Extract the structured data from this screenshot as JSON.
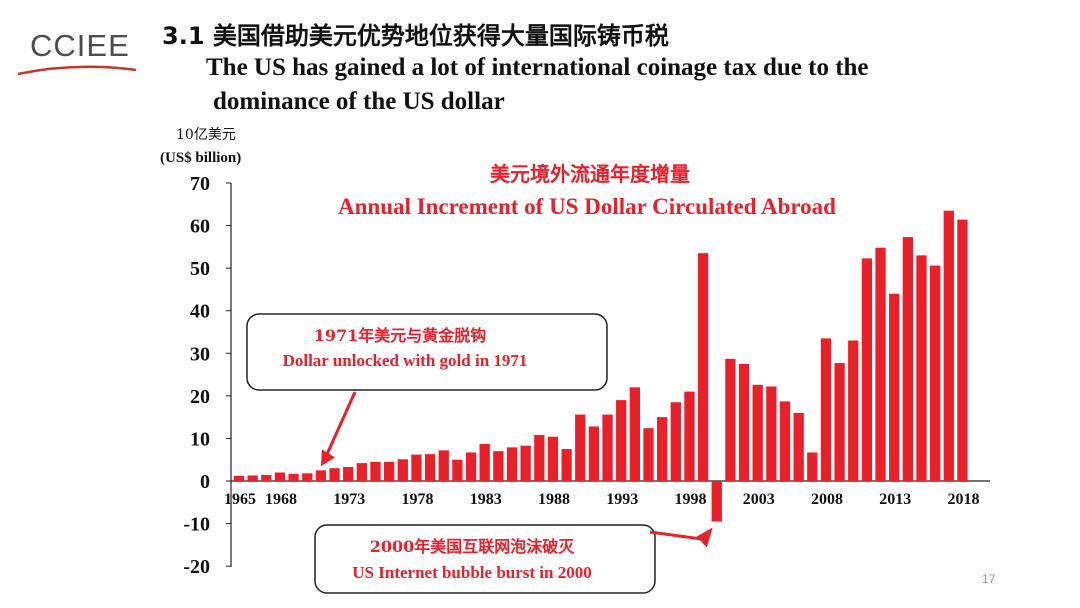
{
  "logo": {
    "text": "CCIEE",
    "accent_color": "#c0392b"
  },
  "header": {
    "title_cn": "3.1 美国借助美元优势地位获得大量国际铸币税",
    "title_en_line1": "The US has gained a lot of international coinage tax due to the",
    "title_en_line2": "dominance of the US dollar"
  },
  "page_number": "17",
  "chart_data": {
    "type": "bar",
    "title_cn": "美元境外流通年度增量",
    "title": "Annual Increment of US Dollar Circulated Abroad",
    "ylabel_cn": "10亿美元",
    "ylabel": "(US$ billion)",
    "xlabel": "",
    "ylim": [
      -20,
      70
    ],
    "yticks": [
      70,
      60,
      50,
      40,
      30,
      20,
      10,
      0,
      -10,
      -20
    ],
    "xtick_labels": [
      "1965",
      "1968",
      "1973",
      "1978",
      "1983",
      "1988",
      "1993",
      "1998",
      "2003",
      "2008",
      "2013",
      "2018"
    ],
    "bar_color": "#e8202a",
    "categories": [
      1965,
      1966,
      1967,
      1968,
      1969,
      1970,
      1971,
      1972,
      1973,
      1974,
      1975,
      1976,
      1977,
      1978,
      1979,
      1980,
      1981,
      1982,
      1983,
      1984,
      1985,
      1986,
      1987,
      1988,
      1989,
      1990,
      1991,
      1992,
      1993,
      1994,
      1995,
      1996,
      1997,
      1998,
      1999,
      2000,
      2001,
      2002,
      2003,
      2004,
      2005,
      2006,
      2007,
      2008,
      2009,
      2010,
      2011,
      2012,
      2013,
      2014,
      2015,
      2016,
      2017,
      2018
    ],
    "values": [
      1.2,
      1.3,
      1.4,
      2.0,
      1.7,
      1.8,
      2.5,
      3.0,
      3.3,
      4.2,
      4.5,
      4.5,
      5.1,
      6.2,
      6.3,
      7.2,
      5.0,
      6.7,
      8.7,
      7.0,
      7.9,
      8.3,
      10.8,
      10.4,
      7.5,
      15.6,
      12.8,
      15.6,
      19.0,
      22.0,
      12.4,
      15.0,
      18.5,
      21.0,
      53.5,
      -9.5,
      28.7,
      27.5,
      22.6,
      22.2,
      18.7,
      16.0,
      6.7,
      33.5,
      27.7,
      33.0,
      52.3,
      54.8,
      44.0,
      57.3,
      53.0,
      50.6,
      63.5,
      61.4
    ],
    "annotations": [
      {
        "text_cn": "1971年美元与黄金脱钩",
        "text_en": "Dollar unlocked with gold in 1971",
        "target": 1971
      },
      {
        "text_cn": "2000年美国互联网泡沫破灭",
        "text_en": "US Internet bubble burst  in 2000",
        "target": 2000
      }
    ]
  }
}
